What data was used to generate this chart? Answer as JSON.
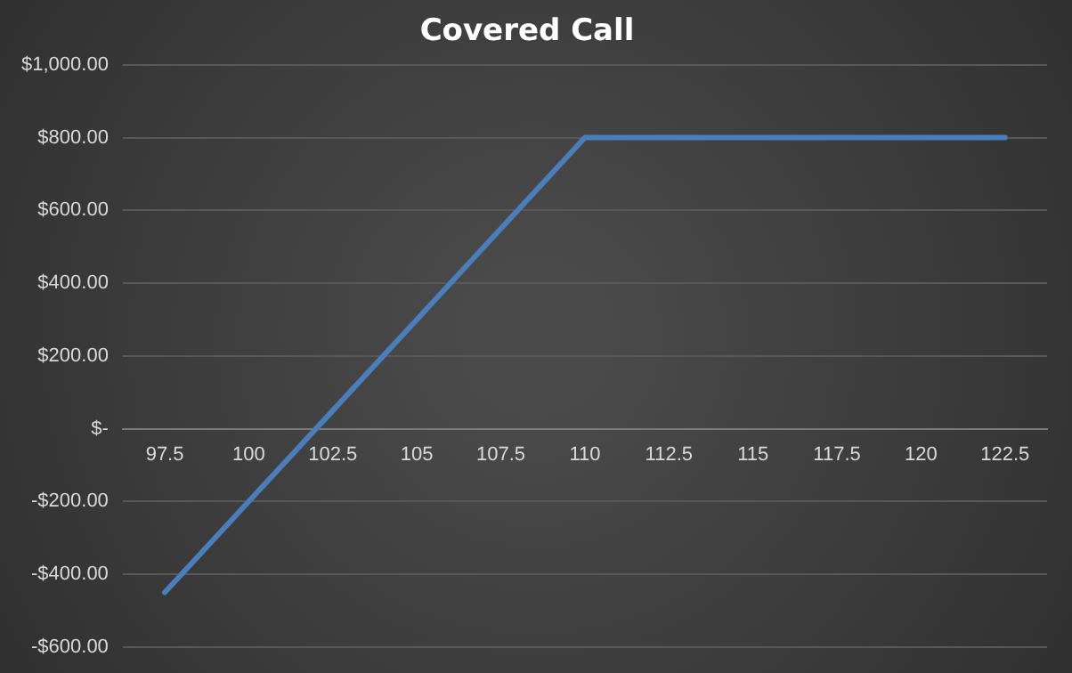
{
  "chart_data": {
    "type": "line",
    "title": "Covered Call",
    "categories": [
      "97.5",
      "100",
      "102.5",
      "105",
      "107.5",
      "110",
      "112.5",
      "115",
      "117.5",
      "120",
      "122.5"
    ],
    "series": [
      {
        "color": "#4a7ebb",
        "values": [
          -450,
          -200,
          50,
          300,
          550,
          800,
          800,
          800,
          800,
          800,
          800
        ]
      }
    ],
    "ylim": [
      -600,
      1000
    ],
    "yticks": [
      {
        "value": -600,
        "label": "-$600.00"
      },
      {
        "value": -400,
        "label": "-$400.00"
      },
      {
        "value": -200,
        "label": "-$200.00"
      },
      {
        "value": 0,
        "label": "$-"
      },
      {
        "value": 200,
        "label": "$200.00"
      },
      {
        "value": 400,
        "label": "$400.00"
      },
      {
        "value": 600,
        "label": "$600.00"
      },
      {
        "value": 800,
        "label": "$800.00"
      },
      {
        "value": 1000,
        "label": "$1,000.00"
      }
    ],
    "grid": "y",
    "legend": false,
    "marker": "none",
    "line_style": "solid"
  }
}
